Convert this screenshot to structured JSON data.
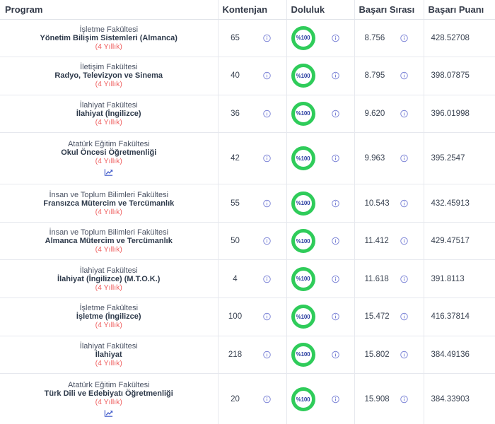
{
  "headers": {
    "program": "Program",
    "quota": "Kontenjan",
    "fill": "Doluluk",
    "rank": "Başarı Sırası",
    "score": "Başarı Puanı"
  },
  "rows": [
    {
      "faculty": "İşletme Fakültesi",
      "program": "Yönetim Bilişim Sistemleri (Almanca)",
      "duration": "(4 Yıllık)",
      "quota": "65",
      "fill": "%100",
      "fill_pct": 100,
      "rank": "8.756",
      "score": "428.52708",
      "trend_icon": false
    },
    {
      "faculty": "İletişim Fakültesi",
      "program": "Radyo, Televizyon ve Sinema",
      "duration": "(4 Yıllık)",
      "quota": "40",
      "fill": "%100",
      "fill_pct": 100,
      "rank": "8.795",
      "score": "398.07875",
      "trend_icon": false
    },
    {
      "faculty": "İlahiyat Fakültesi",
      "program": "İlahiyat (İngilizce)",
      "duration": "(4 Yıllık)",
      "quota": "36",
      "fill": "%100",
      "fill_pct": 100,
      "rank": "9.620",
      "score": "396.01998",
      "trend_icon": false
    },
    {
      "faculty": "Atatürk Eğitim Fakültesi",
      "program": "Okul Öncesi Öğretmenliği",
      "duration": "(4 Yıllık)",
      "quota": "42",
      "fill": "%100",
      "fill_pct": 100,
      "rank": "9.963",
      "score": "395.2547",
      "trend_icon": true
    },
    {
      "faculty": "İnsan ve Toplum Bilimleri Fakültesi",
      "program": "Fransızca Mütercim ve Tercümanlık",
      "duration": "(4 Yıllık)",
      "quota": "55",
      "fill": "%100",
      "fill_pct": 100,
      "rank": "10.543",
      "score": "432.45913",
      "trend_icon": false
    },
    {
      "faculty": "İnsan ve Toplum Bilimleri Fakültesi",
      "program": "Almanca Mütercim ve Tercümanlık",
      "duration": "(4 Yıllık)",
      "quota": "50",
      "fill": "%100",
      "fill_pct": 100,
      "rank": "11.412",
      "score": "429.47517",
      "trend_icon": false
    },
    {
      "faculty": "İlahiyat Fakültesi",
      "program": "İlahiyat (İngilizce) (M.T.O.K.)",
      "duration": "(4 Yıllık)",
      "quota": "4",
      "fill": "%100",
      "fill_pct": 100,
      "rank": "11.618",
      "score": "391.8113",
      "trend_icon": false
    },
    {
      "faculty": "İşletme Fakültesi",
      "program": "İşletme (İngilizce)",
      "duration": "(4 Yıllık)",
      "quota": "100",
      "fill": "%100",
      "fill_pct": 100,
      "rank": "15.472",
      "score": "416.37814",
      "trend_icon": false
    },
    {
      "faculty": "İlahiyat Fakültesi",
      "program": "İlahiyat",
      "duration": "(4 Yıllık)",
      "quota": "218",
      "fill": "%100",
      "fill_pct": 100,
      "rank": "15.802",
      "score": "384.49136",
      "trend_icon": false
    },
    {
      "faculty": "Atatürk Eğitim Fakültesi",
      "program": "Türk Dili ve Edebiyatı Öğretmenliği",
      "duration": "(4 Yıllık)",
      "quota": "20",
      "fill": "%100",
      "fill_pct": 100,
      "rank": "15.908",
      "score": "384.33903",
      "trend_icon": true
    }
  ],
  "colors": {
    "ring": "#2fcc5a",
    "ring_text": "#2a3ea0",
    "duration": "#ef5f5f",
    "info_icon": "#7b83d6"
  }
}
